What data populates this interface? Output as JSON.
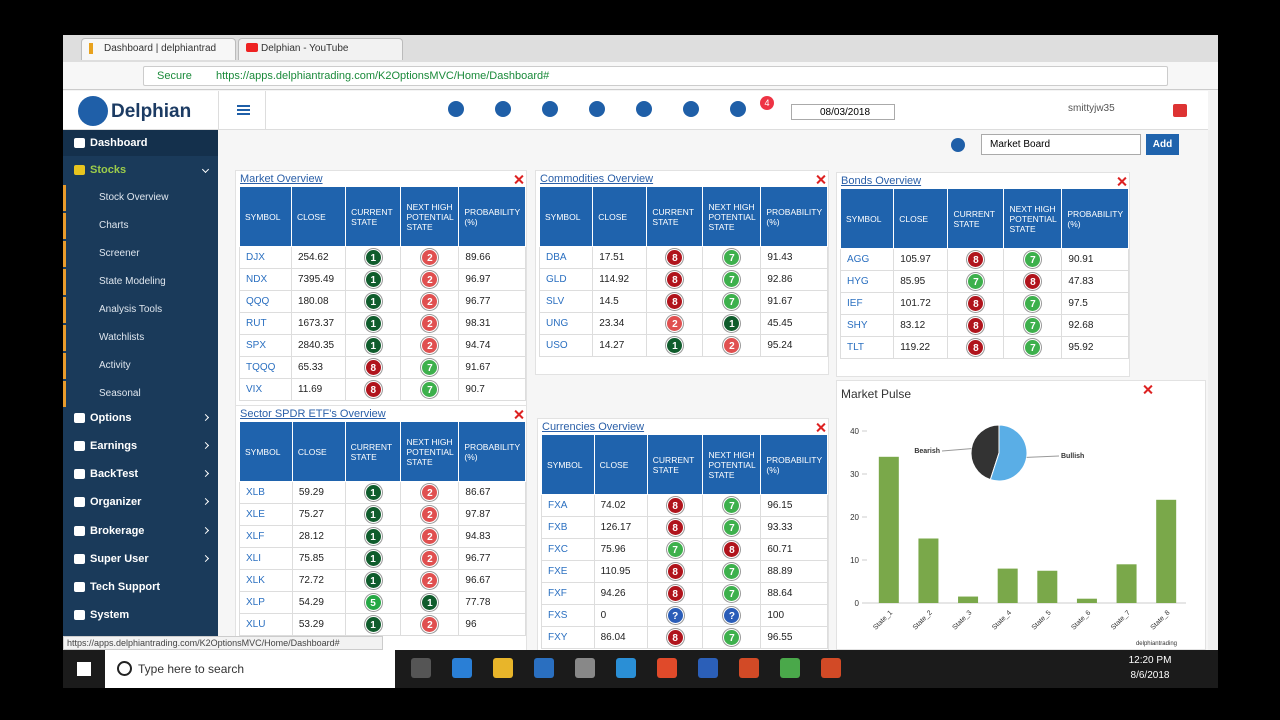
{
  "browser": {
    "tabs": [
      "Dashboard | delphiantrad",
      "Delphian - YouTube"
    ],
    "secure": "Secure",
    "url": "https://apps.delphiantrading.com/K2OptionsMVC/Home/Dashboard#",
    "status_url": "https://apps.delphiantrading.com/K2OptionsMVC/Home/Dashboard#"
  },
  "app": {
    "logo": "Delphian",
    "notifications": 4,
    "date": "08/03/2018",
    "user": "smittyjw35",
    "board": "Market Board",
    "add_button": "Add"
  },
  "menu": [
    "Dashboard",
    "Stocks",
    "Options",
    "Earnings",
    "BackTest",
    "Organizer",
    "Brokerage",
    "Super User",
    "Tech Support",
    "System"
  ],
  "submenu": [
    "Stock Overview",
    "Charts",
    "Screener",
    "State Modeling",
    "Analysis Tools",
    "Watchlists",
    "Activity",
    "Seasonal"
  ],
  "table_headers": [
    "SYMBOL",
    "CLOSE",
    "CURRENT STATE",
    "NEXT HIGH POTENTIAL STATE",
    "PROBABILITY (%)"
  ],
  "panels": [
    {
      "title": "Market Overview",
      "rows": [
        [
          "DJX",
          254.62,
          1,
          2,
          89.66
        ],
        [
          "NDX",
          7395.49,
          1,
          2,
          96.97
        ],
        [
          "QQQ",
          180.08,
          1,
          2,
          96.77
        ],
        [
          "RUT",
          1673.37,
          1,
          2,
          98.31
        ],
        [
          "SPX",
          2840.35,
          1,
          2,
          94.74
        ],
        [
          "TQQQ",
          65.33,
          8,
          7,
          91.67
        ],
        [
          "VIX",
          11.69,
          8,
          7,
          90.7
        ]
      ]
    },
    {
      "title": "Commodities Overview",
      "rows": [
        [
          "DBA",
          17.51,
          8,
          7,
          91.43
        ],
        [
          "GLD",
          114.92,
          8,
          7,
          92.86
        ],
        [
          "SLV",
          14.5,
          8,
          7,
          91.67
        ],
        [
          "UNG",
          23.34,
          2,
          1,
          45.45
        ],
        [
          "USO",
          14.27,
          1,
          2,
          95.24
        ]
      ]
    },
    {
      "title": "Bonds Overview",
      "rows": [
        [
          "AGG",
          105.97,
          8,
          7,
          90.91
        ],
        [
          "HYG",
          85.95,
          7,
          8,
          47.83
        ],
        [
          "IEF",
          101.72,
          8,
          7,
          97.5
        ],
        [
          "SHY",
          83.12,
          8,
          7,
          92.68
        ],
        [
          "TLT",
          119.22,
          8,
          7,
          95.92
        ]
      ]
    },
    {
      "title": "Sector SPDR ETF's Overview",
      "rows": [
        [
          "XLB",
          59.29,
          1,
          2,
          86.67
        ],
        [
          "XLE",
          75.27,
          1,
          2,
          97.87
        ],
        [
          "XLF",
          28.12,
          1,
          2,
          94.83
        ],
        [
          "XLI",
          75.85,
          1,
          2,
          96.77
        ],
        [
          "XLK",
          72.72,
          1,
          2,
          96.67
        ],
        [
          "XLP",
          54.29,
          5,
          1,
          77.78
        ],
        [
          "XLU",
          53.29,
          1,
          2,
          96
        ]
      ]
    },
    {
      "title": "Currencies Overview",
      "rows": [
        [
          "FXA",
          74.02,
          8,
          7,
          96.15
        ],
        [
          "FXB",
          126.17,
          8,
          7,
          93.33
        ],
        [
          "FXC",
          75.96,
          7,
          8,
          60.71
        ],
        [
          "FXE",
          110.95,
          8,
          7,
          88.89
        ],
        [
          "FXF",
          94.26,
          8,
          7,
          88.64
        ],
        [
          "FXS",
          0,
          "?",
          "?",
          100
        ],
        [
          "FXY",
          86.04,
          8,
          7,
          96.55
        ]
      ]
    }
  ],
  "market_pulse": {
    "title": "Market Pulse",
    "type": "bar",
    "categories": [
      "State_1",
      "State_2",
      "State_3",
      "State_4",
      "State_5",
      "State_6",
      "State_7",
      "State_8"
    ],
    "values": [
      34,
      15,
      1.5,
      8,
      7.5,
      1,
      9,
      24
    ],
    "color": "#7aa84a",
    "ylim": [
      0,
      45
    ],
    "yticks": [
      0,
      10,
      20,
      30,
      40
    ],
    "credit": "delphiantrading",
    "pie": {
      "labels": [
        "Bearish",
        "Bullish"
      ],
      "values": [
        45,
        55
      ],
      "colors": [
        "#333333",
        "#5aaee6"
      ]
    }
  },
  "taskbar": {
    "search": "Type here to search",
    "time": "12:20 PM",
    "date": "8/6/2018"
  }
}
